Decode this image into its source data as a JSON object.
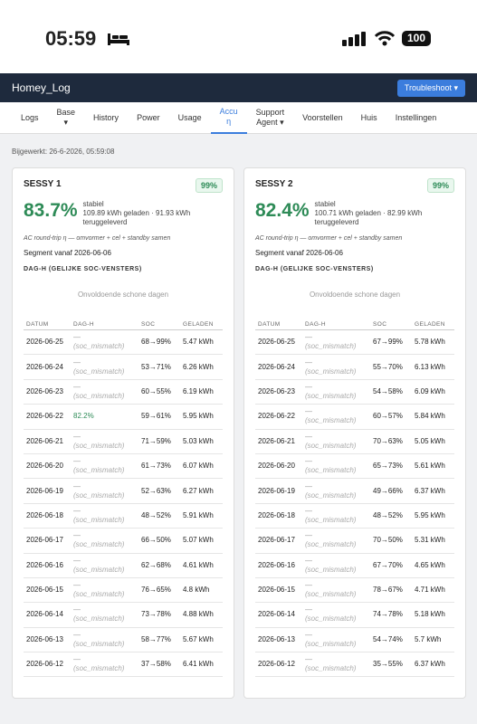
{
  "status_bar": {
    "time": "05:59",
    "battery": "100"
  },
  "header": {
    "title": "Homey_Log",
    "button": "Troubleshoot ▾"
  },
  "nav": {
    "items": [
      "Logs",
      "Base\n▾",
      "History",
      "Power",
      "Usage",
      "Accu\nη",
      "Support\nAgent ▾",
      "Voorstellen",
      "Huis",
      "Instellingen"
    ],
    "active": 5
  },
  "updated": "Bijgewerkt: 26-6-2026, 05:59:08",
  "cards": [
    {
      "title": "SESSY 1",
      "badge": "99%",
      "efficiency": "83.7%",
      "status": "stabiel",
      "detail": "109.89 kWh geladen · 91.93 kWh teruggeleverd",
      "note": "AC round-trip η — omvormer + cel + standby samen",
      "segment": "Segment vanaf 2026-06-06",
      "section": "DAG-H (GELIJKE SOC-VENSTERS)",
      "chart_empty": "Onvoldoende schone dagen",
      "columns": [
        "DATUM",
        "DAG-H",
        "SOC",
        "GELADEN"
      ],
      "rows": [
        {
          "date": "2026-06-25",
          "dag_h": "—",
          "reason": "(soc_mismatch)",
          "soc": "68→99%",
          "geladen": "5.47 kWh"
        },
        {
          "date": "2026-06-24",
          "dag_h": "—",
          "reason": "(soc_mismatch)",
          "soc": "53→71%",
          "geladen": "6.26 kWh"
        },
        {
          "date": "2026-06-23",
          "dag_h": "—",
          "reason": "(soc_mismatch)",
          "soc": "60→55%",
          "geladen": "6.19 kWh"
        },
        {
          "date": "2026-06-22",
          "dag_h": "82.2%",
          "soc": "59→61%",
          "geladen": "5.95 kWh"
        },
        {
          "date": "2026-06-21",
          "dag_h": "—",
          "reason": "(soc_mismatch)",
          "soc": "71→59%",
          "geladen": "5.03 kWh"
        },
        {
          "date": "2026-06-20",
          "dag_h": "—",
          "reason": "(soc_mismatch)",
          "soc": "61→73%",
          "geladen": "6.07 kWh"
        },
        {
          "date": "2026-06-19",
          "dag_h": "—",
          "reason": "(soc_mismatch)",
          "soc": "52→63%",
          "geladen": "6.27 kWh"
        },
        {
          "date": "2026-06-18",
          "dag_h": "—",
          "reason": "(soc_mismatch)",
          "soc": "48→52%",
          "geladen": "5.91 kWh"
        },
        {
          "date": "2026-06-17",
          "dag_h": "—",
          "reason": "(soc_mismatch)",
          "soc": "66→50%",
          "geladen": "5.07 kWh"
        },
        {
          "date": "2026-06-16",
          "dag_h": "—",
          "reason": "(soc_mismatch)",
          "soc": "62→68%",
          "geladen": "4.61 kWh"
        },
        {
          "date": "2026-06-15",
          "dag_h": "—",
          "reason": "(soc_mismatch)",
          "soc": "76→65%",
          "geladen": "4.8 kWh"
        },
        {
          "date": "2026-06-14",
          "dag_h": "—",
          "reason": "(soc_mismatch)",
          "soc": "73→78%",
          "geladen": "4.88 kWh"
        },
        {
          "date": "2026-06-13",
          "dag_h": "—",
          "reason": "(soc_mismatch)",
          "soc": "58→77%",
          "geladen": "5.67 kWh"
        },
        {
          "date": "2026-06-12",
          "dag_h": "—",
          "reason": "(soc_mismatch)",
          "soc": "37→58%",
          "geladen": "6.41 kWh"
        }
      ]
    },
    {
      "title": "SESSY 2",
      "badge": "99%",
      "efficiency": "82.4%",
      "status": "stabiel",
      "detail": "100.71 kWh geladen · 82.99 kWh teruggeleverd",
      "note": "AC round-trip η — omvormer + cel + standby samen",
      "segment": "Segment vanaf 2026-06-06",
      "section": "DAG-H (GELIJKE SOC-VENSTERS)",
      "chart_empty": "Onvoldoende schone dagen",
      "columns": [
        "DATUM",
        "DAG-H",
        "SOC",
        "GELADEN"
      ],
      "rows": [
        {
          "date": "2026-06-25",
          "dag_h": "—",
          "reason": "(soc_mismatch)",
          "soc": "67→99%",
          "geladen": "5.78 kWh"
        },
        {
          "date": "2026-06-24",
          "dag_h": "—",
          "reason": "(soc_mismatch)",
          "soc": "55→70%",
          "geladen": "6.13 kWh"
        },
        {
          "date": "2026-06-23",
          "dag_h": "—",
          "reason": "(soc_mismatch)",
          "soc": "54→58%",
          "geladen": "6.09 kWh"
        },
        {
          "date": "2026-06-22",
          "dag_h": "—",
          "reason": "(soc_mismatch)",
          "soc": "60→57%",
          "geladen": "5.84 kWh"
        },
        {
          "date": "2026-06-21",
          "dag_h": "—",
          "reason": "(soc_mismatch)",
          "soc": "70→63%",
          "geladen": "5.05 kWh"
        },
        {
          "date": "2026-06-20",
          "dag_h": "—",
          "reason": "(soc_mismatch)",
          "soc": "65→73%",
          "geladen": "5.61 kWh"
        },
        {
          "date": "2026-06-19",
          "dag_h": "—",
          "reason": "(soc_mismatch)",
          "soc": "49→66%",
          "geladen": "6.37 kWh"
        },
        {
          "date": "2026-06-18",
          "dag_h": "—",
          "reason": "(soc_mismatch)",
          "soc": "48→52%",
          "geladen": "5.95 kWh"
        },
        {
          "date": "2026-06-17",
          "dag_h": "—",
          "reason": "(soc_mismatch)",
          "soc": "70→50%",
          "geladen": "5.31 kWh"
        },
        {
          "date": "2026-06-16",
          "dag_h": "—",
          "reason": "(soc_mismatch)",
          "soc": "67→70%",
          "geladen": "4.65 kWh"
        },
        {
          "date": "2026-06-15",
          "dag_h": "—",
          "reason": "(soc_mismatch)",
          "soc": "78→67%",
          "geladen": "4.71 kWh"
        },
        {
          "date": "2026-06-14",
          "dag_h": "—",
          "reason": "(soc_mismatch)",
          "soc": "74→78%",
          "geladen": "5.18 kWh"
        },
        {
          "date": "2026-06-13",
          "dag_h": "—",
          "reason": "(soc_mismatch)",
          "soc": "54→74%",
          "geladen": "5.7 kWh"
        },
        {
          "date": "2026-06-12",
          "dag_h": "—",
          "reason": "(soc_mismatch)",
          "soc": "35→55%",
          "geladen": "6.37 kWh"
        }
      ]
    }
  ]
}
